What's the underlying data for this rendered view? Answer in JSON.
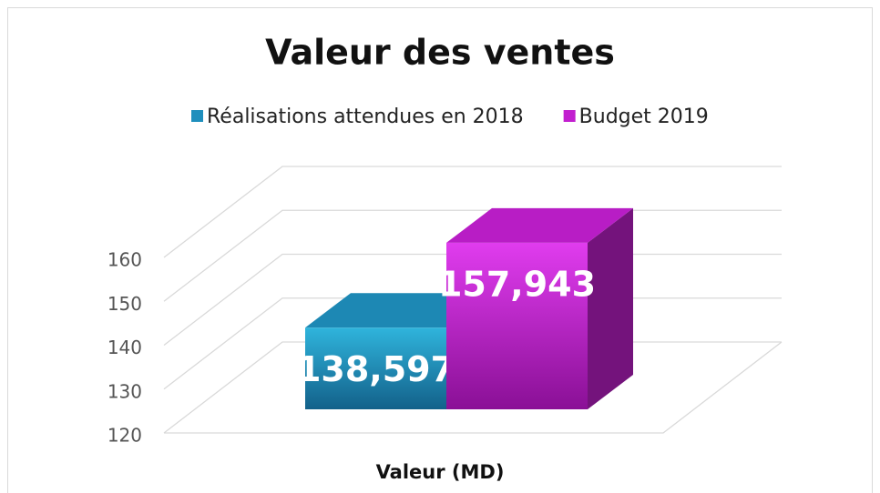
{
  "chart_data": {
    "type": "bar3d",
    "title": "Valeur des ventes",
    "x_label": "Valeur (MD)",
    "categories": [
      "Valeur (MD)"
    ],
    "series": [
      {
        "name": "Réalisations attendues en 2018",
        "color": "#1f8fbd",
        "values": [
          138.597
        ],
        "value_labels": [
          "138,597"
        ]
      },
      {
        "name": "Budget 2019",
        "color": "#c21fcf",
        "values": [
          157.943
        ],
        "value_labels": [
          "157,943"
        ]
      }
    ],
    "ylim": [
      120,
      160
    ],
    "yticks": [
      120,
      130,
      140,
      150,
      160
    ],
    "grid": true,
    "legend": "top"
  }
}
